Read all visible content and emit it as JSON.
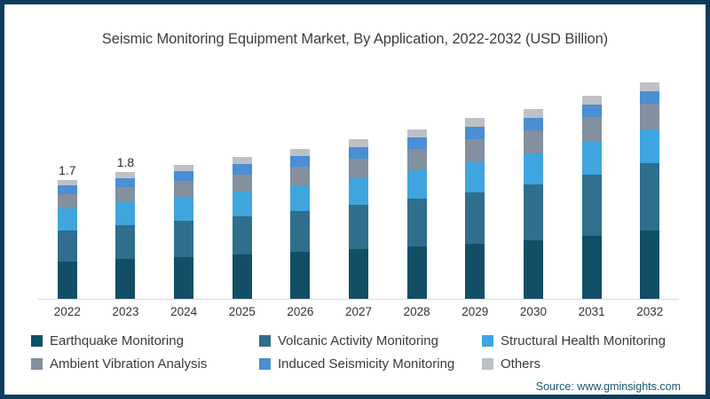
{
  "page": {
    "border_color": "#0e3c5a",
    "background_color": "#ffffff"
  },
  "chart_data": {
    "type": "bar",
    "stacked": true,
    "title": "Seismic Monitoring Equipment Market, By Application, 2022-2032 (USD Billion)",
    "unit": "USD Billion",
    "legend_position": "bottom",
    "grid": false,
    "y_axis_shown": false,
    "categories": [
      "2022",
      "2023",
      "2024",
      "2025",
      "2026",
      "2027",
      "2028",
      "2029",
      "2030",
      "2031",
      "2032"
    ],
    "series": [
      {
        "name": "Earthquake Monitoring",
        "color": "#124f66",
        "values": [
          0.52,
          0.56,
          0.59,
          0.62,
          0.66,
          0.7,
          0.74,
          0.78,
          0.83,
          0.89,
          0.96
        ]
      },
      {
        "name": "Volcanic Activity Monitoring",
        "color": "#2f6e8d",
        "values": [
          0.44,
          0.48,
          0.51,
          0.54,
          0.58,
          0.62,
          0.67,
          0.73,
          0.79,
          0.86,
          0.95
        ]
      },
      {
        "name": "Structural Health Monitoring",
        "color": "#3fa5de",
        "values": [
          0.31,
          0.33,
          0.34,
          0.35,
          0.36,
          0.38,
          0.4,
          0.42,
          0.44,
          0.46,
          0.48
        ]
      },
      {
        "name": "Ambient Vibration Analysis",
        "color": "#82909f",
        "values": [
          0.2,
          0.21,
          0.23,
          0.24,
          0.26,
          0.28,
          0.3,
          0.32,
          0.33,
          0.35,
          0.36
        ]
      },
      {
        "name": "Induced Seismicity Monitoring",
        "color": "#4a8ed3",
        "values": [
          0.13,
          0.13,
          0.14,
          0.15,
          0.15,
          0.16,
          0.16,
          0.17,
          0.17,
          0.18,
          0.18
        ]
      },
      {
        "name": "Others",
        "color": "#bcc1c6",
        "values": [
          0.08,
          0.09,
          0.09,
          0.1,
          0.1,
          0.11,
          0.11,
          0.12,
          0.12,
          0.13,
          0.13
        ]
      }
    ],
    "bar_value_labels": {
      "2022": "1.7",
      "2023": "1.8"
    },
    "baseline_color": "#d9d9d9"
  },
  "source": {
    "label": "Source: www.gminsights.com"
  }
}
